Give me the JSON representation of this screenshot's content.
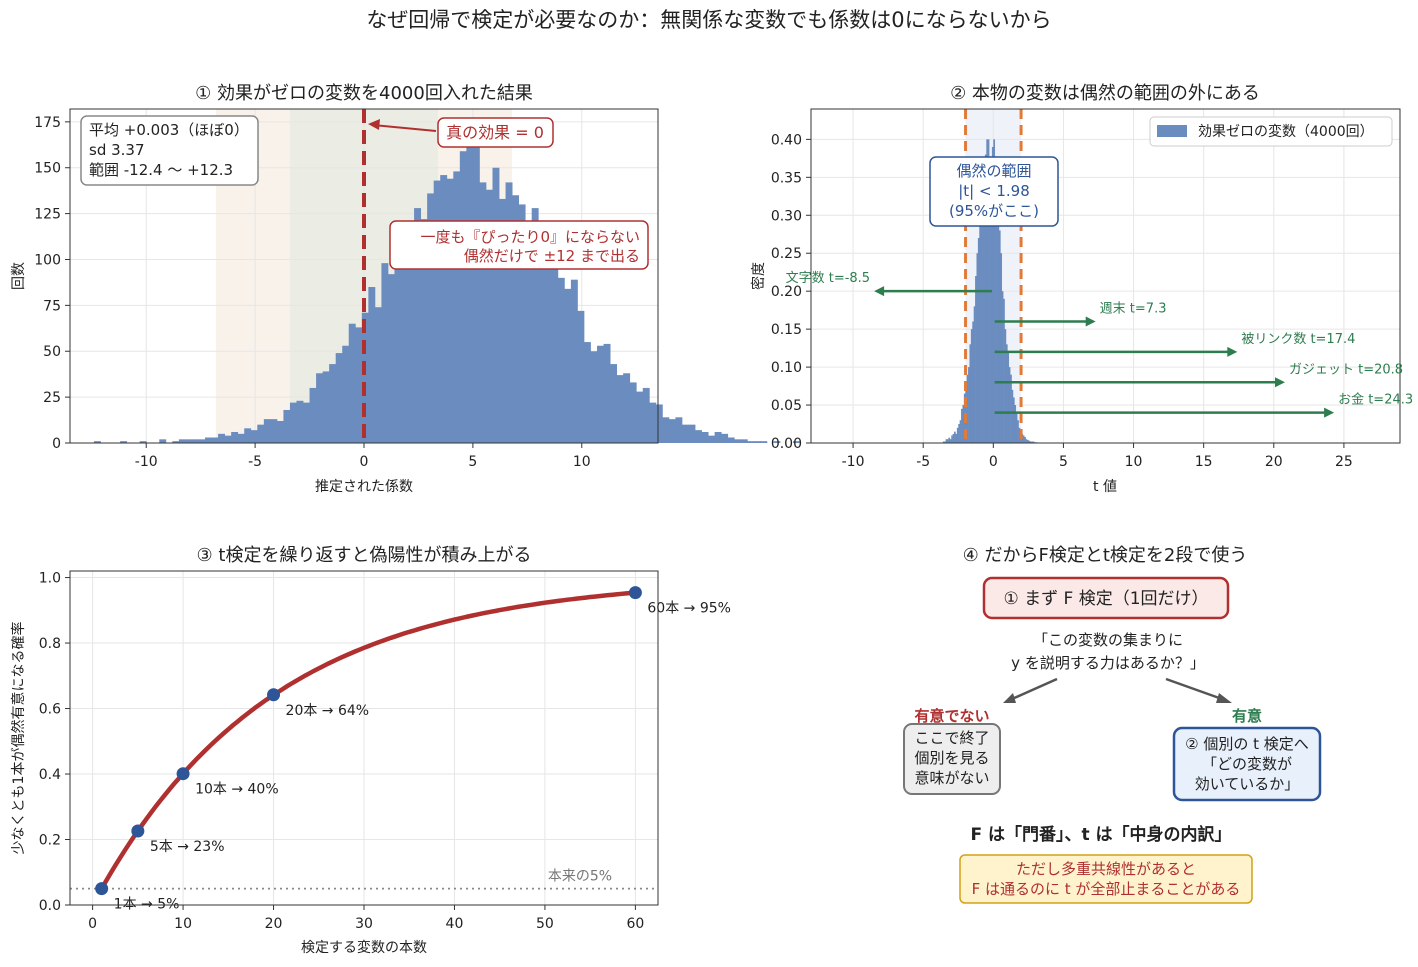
{
  "title": "なぜ回帰で検定が必要なのか：無関係な変数でも係数は0にならないから",
  "colors": {
    "hist_bar": "#6b8cbf",
    "red": "#b03030",
    "orange_dash": "#e07b39",
    "green": "#2e7d4f",
    "blue_dark": "#2d5597",
    "grid": "#e6e6e6"
  },
  "chart_data": [
    {
      "type": "bar",
      "title": "① 効果がゼロの変数を4000回入れた結果",
      "xlabel": "推定された係数",
      "ylabel": "回数",
      "xlim": [
        -13.5,
        13.5
      ],
      "ylim": [
        0,
        182
      ],
      "xticks": [
        -10,
        -5,
        0,
        5,
        10
      ],
      "yticks": [
        0,
        25,
        50,
        75,
        100,
        125,
        150,
        175
      ],
      "bin_start": -12.4,
      "bin_width": 0.3,
      "counts": [
        1,
        0,
        0,
        0,
        1,
        0,
        0,
        1,
        0,
        0,
        2,
        0,
        1,
        2,
        2,
        2,
        2,
        3,
        3,
        5,
        4,
        6,
        5,
        8,
        7,
        10,
        13,
        13,
        12,
        18,
        22,
        23,
        22,
        30,
        38,
        39,
        43,
        49,
        53,
        65,
        63,
        71,
        85,
        74,
        98,
        92,
        102,
        103,
        115,
        128,
        122,
        136,
        143,
        146,
        144,
        148,
        159,
        175,
        170,
        142,
        138,
        150,
        133,
        142,
        135,
        130,
        120,
        128,
        118,
        113,
        111,
        90,
        84,
        89,
        72,
        55,
        50,
        53,
        54,
        43,
        37,
        38,
        33,
        28,
        30,
        22,
        21,
        14,
        13,
        14,
        10,
        10,
        7,
        6,
        4,
        6,
        5,
        3,
        2,
        2,
        1,
        1,
        1,
        0,
        1,
        0,
        0,
        1
      ],
      "shade_inner": [
        -3.4,
        3.4
      ],
      "shade_outer": [
        -6.8,
        6.8
      ],
      "true_effect_line": 0,
      "stats_box": [
        "平均 +0.003（ほぼ0）",
        "sd 3.37",
        "範囲 -12.4 〜 +12.3"
      ],
      "annotation_true": "真の効果 = 0",
      "annotation_chance": [
        "一度も『ぴったり0』にならない",
        "偶然だけで ±12 まで出る"
      ]
    },
    {
      "type": "bar",
      "title": "② 本物の変数は偶然の範囲の外にある",
      "xlabel": "t 値",
      "ylabel": "密度",
      "xlim": [
        -13,
        29
      ],
      "ylim": [
        0,
        0.44
      ],
      "xticks": [
        -10,
        -5,
        0,
        5,
        10,
        15,
        20,
        25
      ],
      "yticks": [
        "0.00",
        "0.05",
        "0.10",
        "0.15",
        "0.20",
        "0.25",
        "0.30",
        "0.35",
        "0.40"
      ],
      "legend": "効果ゼロの変数（4000回）",
      "legend_position": "top-right",
      "critical_values": [
        -1.98,
        1.98
      ],
      "range_box": [
        "偶然の範囲",
        "|t| < 1.98",
        "(95%がここ)"
      ],
      "density_bins": {
        "start": -3.6,
        "width": 0.1,
        "values": [
          0.002,
          0.002,
          0.005,
          0.005,
          0.007,
          0.005,
          0.01,
          0.012,
          0.015,
          0.012,
          0.02,
          0.025,
          0.03,
          0.045,
          0.05,
          0.065,
          0.075,
          0.09,
          0.1,
          0.13,
          0.15,
          0.16,
          0.18,
          0.22,
          0.25,
          0.27,
          0.3,
          0.33,
          0.34,
          0.36,
          0.38,
          0.4,
          0.4,
          0.37,
          0.35,
          0.39,
          0.4,
          0.37,
          0.33,
          0.3,
          0.28,
          0.25,
          0.2,
          0.19,
          0.15,
          0.13,
          0.12,
          0.1,
          0.09,
          0.07,
          0.06,
          0.05,
          0.04,
          0.03,
          0.02,
          0.015,
          0.012,
          0.01,
          0.008,
          0.005,
          0.004,
          0.003,
          0.002,
          0.002,
          0.002,
          0.001,
          0.001
        ]
      },
      "real_variables": [
        {
          "label": "文字数 t=-8.5",
          "t": -8.5,
          "y": 0.2
        },
        {
          "label": "週末 t=7.3",
          "t": 7.3,
          "y": 0.16
        },
        {
          "label": "被リンク数 t=17.4",
          "t": 17.4,
          "y": 0.12
        },
        {
          "label": "ガジェット t=20.8",
          "t": 20.8,
          "y": 0.08
        },
        {
          "label": "お金 t=24.3",
          "t": 24.3,
          "y": 0.04
        }
      ]
    },
    {
      "type": "line",
      "title": "③ t検定を繰り返すと偽陽性が積み上がる",
      "xlabel": "検定する変数の本数",
      "ylabel": "少なくとも1本が偶然有意になる確率",
      "xlim": [
        -2.5,
        62.5
      ],
      "ylim": [
        0,
        1.02
      ],
      "xticks": [
        0,
        10,
        20,
        30,
        40,
        50,
        60
      ],
      "yticks": [
        "0.0",
        "0.2",
        "0.4",
        "0.6",
        "0.8",
        "1.0"
      ],
      "alpha": 0.05,
      "x_range": [
        1,
        60
      ],
      "points": [
        {
          "x": 1,
          "y": 0.05,
          "label": "1本 → 5%"
        },
        {
          "x": 5,
          "y": 0.226,
          "label": "5本 → 23%"
        },
        {
          "x": 10,
          "y": 0.401,
          "label": "10本 → 40%"
        },
        {
          "x": 20,
          "y": 0.642,
          "label": "20本 → 64%"
        },
        {
          "x": 60,
          "y": 0.954,
          "label": "60本 → 95%"
        }
      ],
      "baseline": 0.05,
      "baseline_label": "本来の5%"
    }
  ],
  "panel4": {
    "title": "④ だからF検定とt検定を2段で使う",
    "f_box": "① まず F 検定（1回だけ）",
    "question": [
      "「この変数の集まりに",
      "y を説明する力はあるか？」"
    ],
    "not_sig_label": "有意でない",
    "not_sig_box": [
      "ここで終了",
      "個別を見る",
      "意味がない"
    ],
    "sig_label": "有意",
    "sig_box": [
      "② 個別の t 検定へ",
      "「どの変数が",
      "効いているか」"
    ],
    "summary": "F は「門番」、t は「中身の内訳」",
    "caveat": [
      "ただし多重共線性があると",
      "F は通るのに t が全部止まることがある"
    ]
  }
}
